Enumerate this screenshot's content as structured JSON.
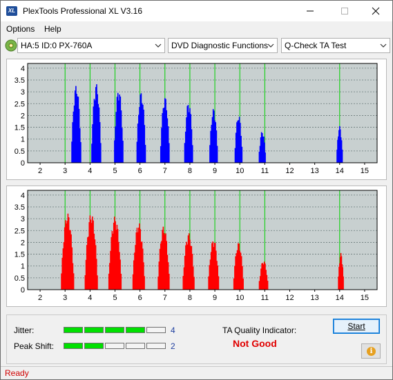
{
  "window": {
    "title": "PlexTools Professional XL V3.16",
    "icon_text": "XL"
  },
  "menu": {
    "items": [
      {
        "label": "Options"
      },
      {
        "label": "Help"
      }
    ]
  },
  "toolbar": {
    "drive": "HA:5 ID:0  PX-760A",
    "function": "DVD Diagnostic Functions",
    "test": "Q-Check TA Test"
  },
  "chart_data": [
    {
      "type": "bar",
      "name": "top",
      "color": "#0000ff",
      "x_ticks": [
        "2",
        "3",
        "4",
        "5",
        "6",
        "7",
        "8",
        "9",
        "10",
        "11",
        "12",
        "13",
        "14",
        "15"
      ],
      "y_ticks": [
        "0",
        "0.5",
        "1",
        "1.5",
        "2",
        "2.5",
        "3",
        "3.5",
        "4"
      ],
      "xlim": [
        1.5,
        15.5
      ],
      "ylim": [
        0,
        4.2
      ],
      "green_lines": [
        3,
        4,
        5,
        6,
        7,
        8,
        9,
        10,
        11,
        14
      ],
      "peaks": [
        {
          "center": 3.45,
          "height": 3.3,
          "width": 0.42
        },
        {
          "center": 4.25,
          "height": 3.35,
          "width": 0.42
        },
        {
          "center": 5.15,
          "height": 3.15,
          "width": 0.4
        },
        {
          "center": 6.05,
          "height": 3.0,
          "width": 0.4
        },
        {
          "center": 7.0,
          "height": 2.8,
          "width": 0.4
        },
        {
          "center": 7.95,
          "height": 2.6,
          "width": 0.38
        },
        {
          "center": 8.95,
          "height": 2.3,
          "width": 0.36
        },
        {
          "center": 9.95,
          "height": 2.05,
          "width": 0.34
        },
        {
          "center": 10.9,
          "height": 1.35,
          "width": 0.3
        },
        {
          "center": 14.0,
          "height": 1.55,
          "width": 0.26
        }
      ]
    },
    {
      "type": "bar",
      "name": "bottom",
      "color": "#ff0000",
      "x_ticks": [
        "2",
        "3",
        "4",
        "5",
        "6",
        "7",
        "8",
        "9",
        "10",
        "11",
        "12",
        "13",
        "14",
        "15"
      ],
      "y_ticks": [
        "0",
        "0.5",
        "1",
        "1.5",
        "2",
        "2.5",
        "3",
        "3.5",
        "4"
      ],
      "xlim": [
        1.5,
        15.5
      ],
      "ylim": [
        0,
        4.2
      ],
      "green_lines": [
        3,
        4,
        5,
        6,
        7,
        8,
        9,
        10,
        11,
        14
      ],
      "peaks": [
        {
          "center": 3.1,
          "height": 3.25,
          "width": 0.55
        },
        {
          "center": 4.05,
          "height": 3.25,
          "width": 0.55
        },
        {
          "center": 5.0,
          "height": 3.1,
          "width": 0.55
        },
        {
          "center": 5.95,
          "height": 2.85,
          "width": 0.52
        },
        {
          "center": 6.95,
          "height": 2.7,
          "width": 0.5
        },
        {
          "center": 7.95,
          "height": 2.4,
          "width": 0.5
        },
        {
          "center": 8.95,
          "height": 2.15,
          "width": 0.46
        },
        {
          "center": 9.95,
          "height": 2.0,
          "width": 0.44
        },
        {
          "center": 10.95,
          "height": 1.25,
          "width": 0.4
        },
        {
          "center": 14.05,
          "height": 1.55,
          "width": 0.24
        }
      ]
    }
  ],
  "indicators": {
    "jitter_label": "Jitter:",
    "jitter_value": "4",
    "jitter_level": 4,
    "peak_label": "Peak Shift:",
    "peak_value": "2",
    "peak_level": 2,
    "segments": 5,
    "on_color": "#00e000"
  },
  "ta_quality": {
    "label": "TA Quality Indicator:",
    "value": "Not Good",
    "value_color": "#e00000"
  },
  "buttons": {
    "start": "Start"
  },
  "status": {
    "text": "Ready"
  }
}
